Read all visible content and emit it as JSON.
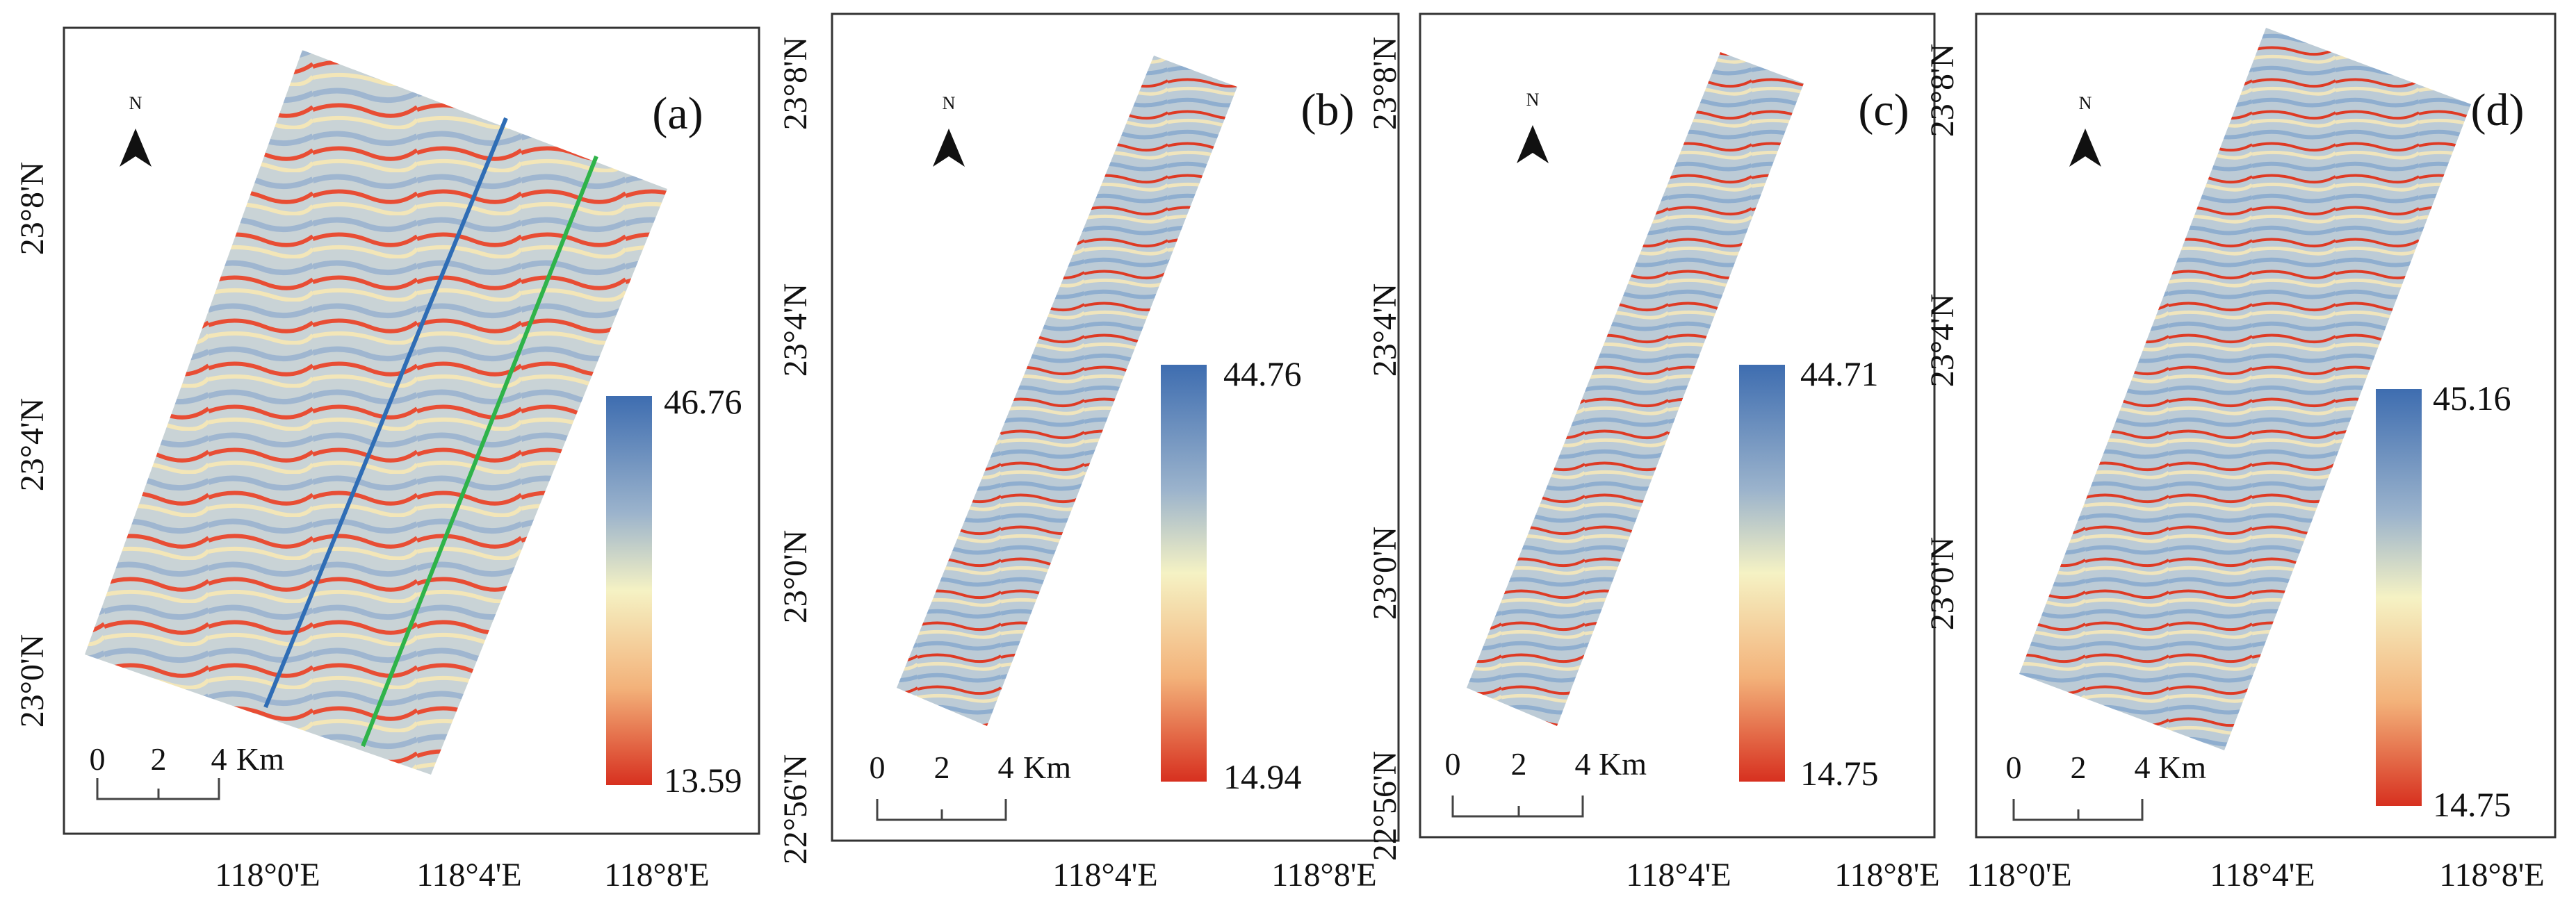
{
  "figure": {
    "scale_units": "Km",
    "scale_ticks": [
      "0",
      "2",
      "4"
    ],
    "colors": {
      "high": "#3e6db0",
      "mid_high": "#9bb3cc",
      "mid": "#f5f2c4",
      "mid_low": "#f3b27a",
      "low": "#d7301f",
      "line_blue": "#2f6db5",
      "line_green": "#2fb34a",
      "frame": "#333333"
    },
    "panels": [
      {
        "id": "a",
        "label": "(a)",
        "legend_max": "46.76",
        "legend_min": "13.59",
        "lat_ticks": [
          "23°8'N",
          "23°4'N",
          "23°0'N"
        ],
        "lon_ticks": [
          "118°0'E",
          "118°4'E",
          "118°8'E"
        ],
        "north": "N",
        "profile_lines": [
          "blue",
          "green"
        ]
      },
      {
        "id": "b",
        "label": "(b)",
        "legend_max": "44.76",
        "legend_min": "14.94",
        "lat_ticks": [
          "23°8'N",
          "23°4'N",
          "23°0'N",
          "22°56'N"
        ],
        "lon_ticks": [
          "118°4'E",
          "118°8'E"
        ],
        "north": "N"
      },
      {
        "id": "c",
        "label": "(c)",
        "legend_max": "44.71",
        "legend_min": "14.75",
        "lat_ticks": [
          "23°8'N",
          "23°4'N",
          "23°0'N",
          "22°56'N"
        ],
        "lon_ticks": [
          "118°4'E",
          "118°8'E"
        ],
        "north": "N"
      },
      {
        "id": "d",
        "label": "(d)",
        "legend_max": "45.16",
        "legend_min": "14.75",
        "lat_ticks": [
          "23°8'N",
          "23°4'N",
          "23°0'N"
        ],
        "lon_ticks": [
          "118°0'E",
          "118°4'E",
          "118°8'E"
        ],
        "north": "N"
      }
    ]
  }
}
